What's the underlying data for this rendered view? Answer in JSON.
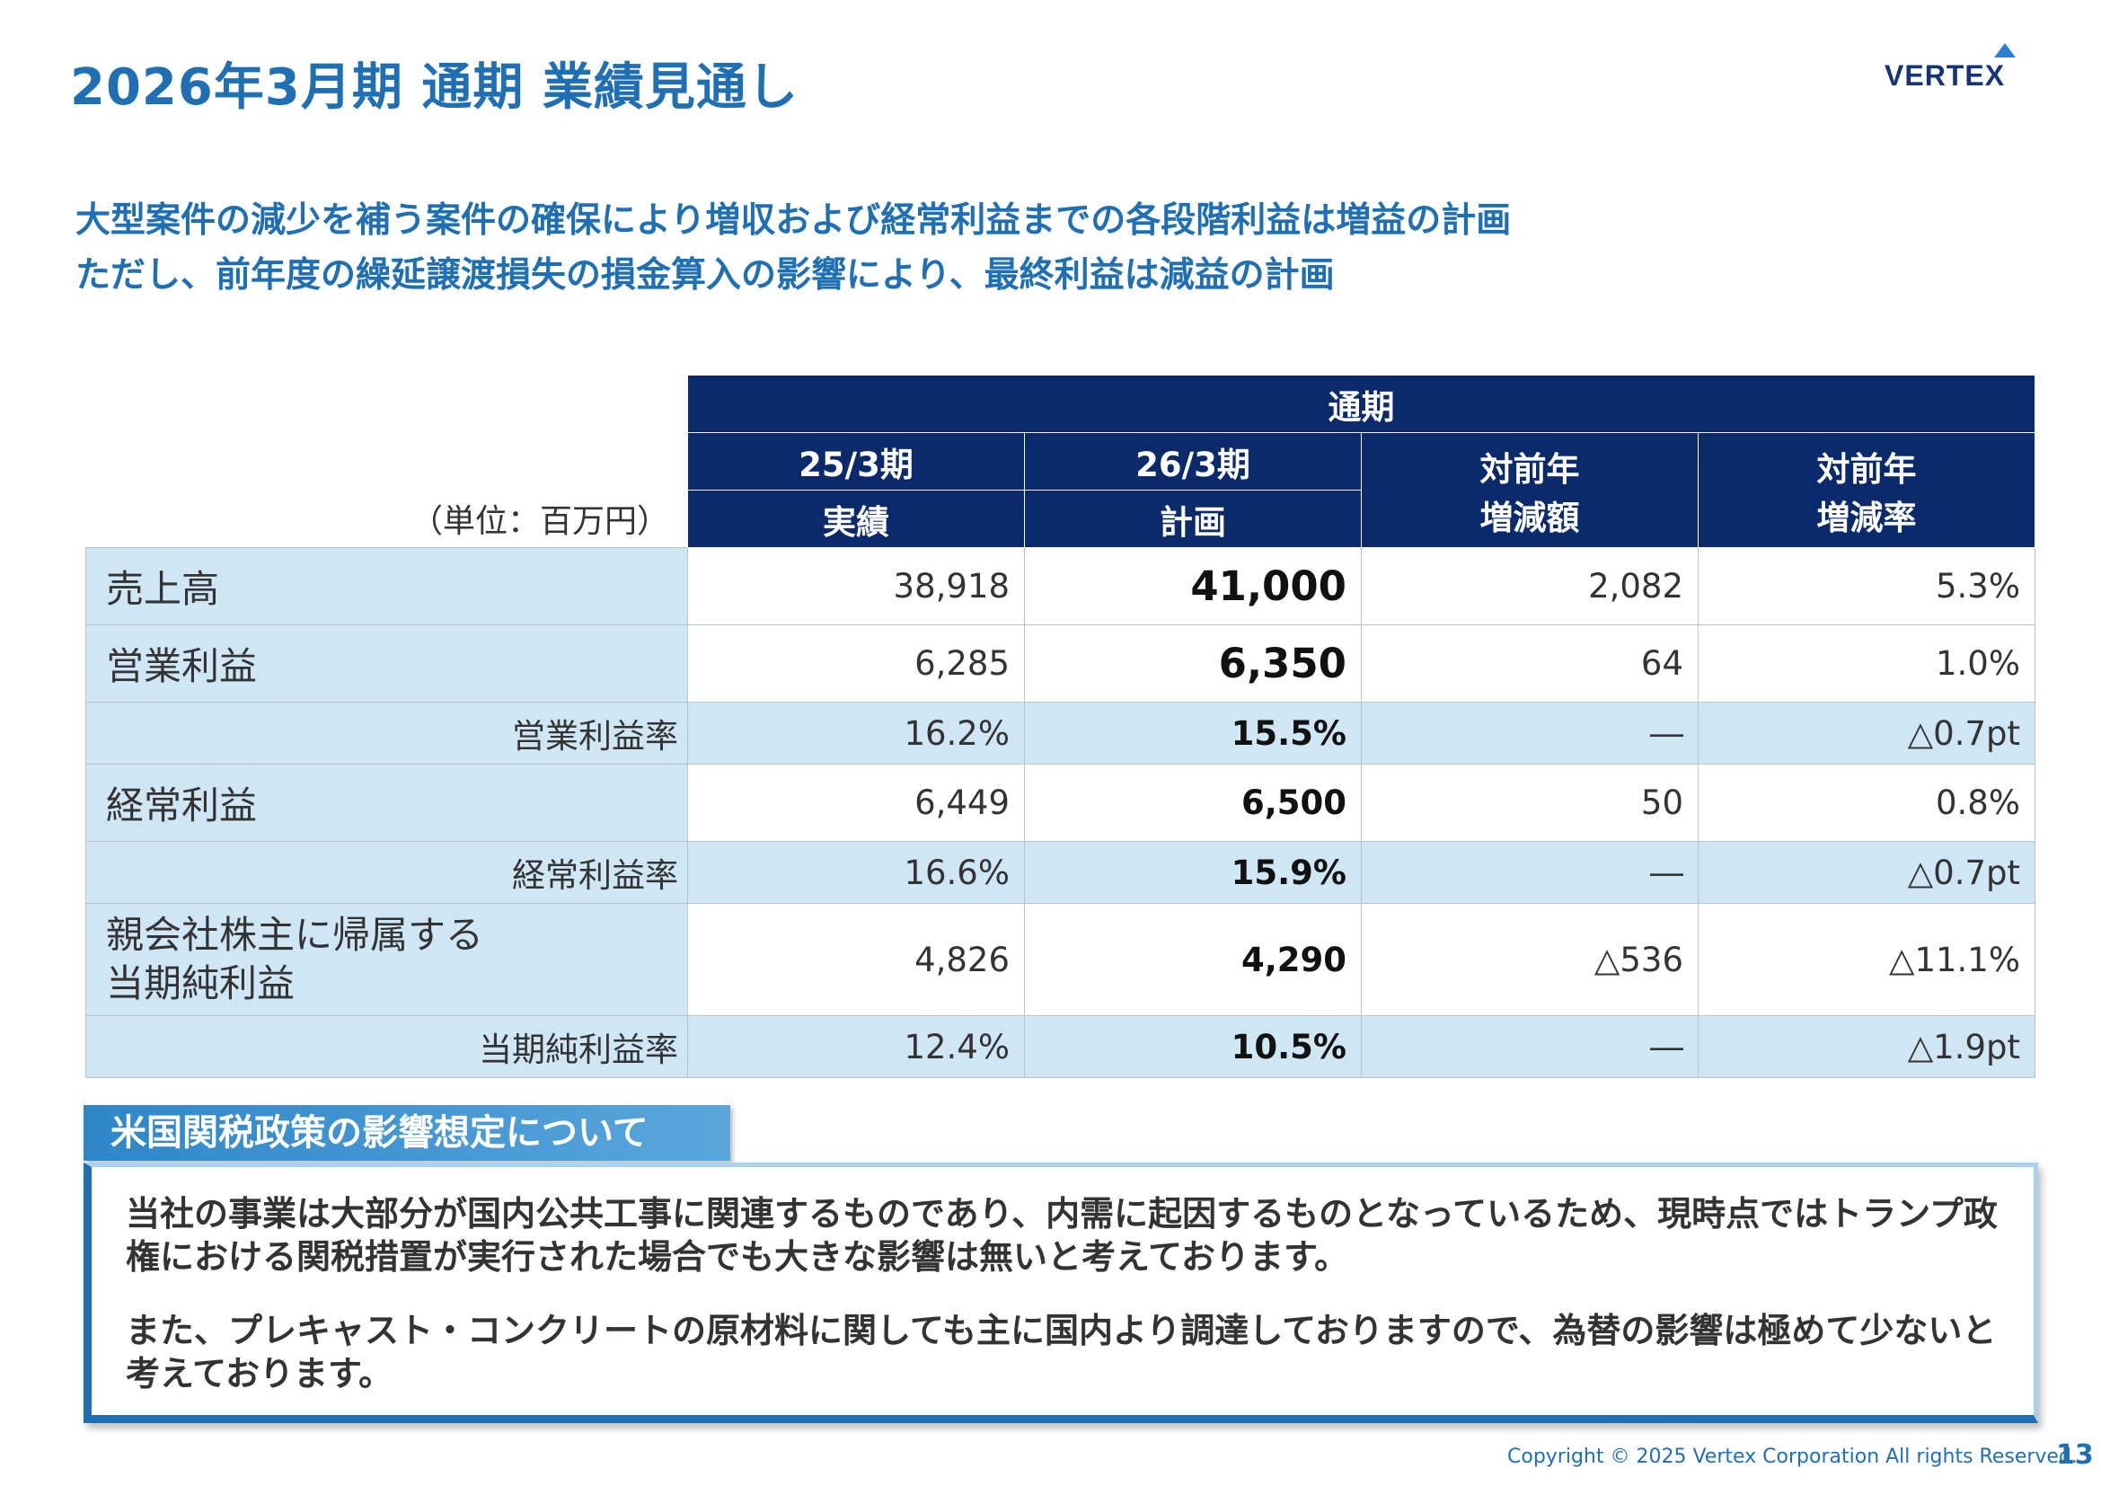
{
  "title": "2026年3月期 通期 業績見通し",
  "logo": {
    "text": "VERTEX"
  },
  "subtitle": {
    "line1": "大型案件の減少を補う案件の確保により増収および経常利益までの各段階利益は増益の計画",
    "line2": "ただし、前年度の繰延譲渡損失の損金算入の影響により、最終利益は減益の計画"
  },
  "table": {
    "unit": "（単位：百万円）",
    "header_group": "通期",
    "col1_top": "25/3期",
    "col1_bottom": "実績",
    "col2_top": "26/3期",
    "col2_bottom": "計画",
    "col3_line1": "対前年",
    "col3_line2": "増減額",
    "col4_line1": "対前年",
    "col4_line2": "増減率",
    "rows": [
      {
        "label": "売上高",
        "actual": "38,918",
        "plan": "41,000",
        "diff": "2,082",
        "rate": "5.3%"
      },
      {
        "label": "営業利益",
        "actual": "6,285",
        "plan": "6,350",
        "diff": "64",
        "rate": "1.0%"
      },
      {
        "label": "営業利益率",
        "actual": "16.2%",
        "plan": "15.5%",
        "diff": "―",
        "rate": "△0.7pt"
      },
      {
        "label": "経常利益",
        "actual": "6,449",
        "plan": "6,500",
        "diff": "50",
        "rate": "0.8%"
      },
      {
        "label": "経常利益率",
        "actual": "16.6%",
        "plan": "15.9%",
        "diff": "―",
        "rate": "△0.7pt"
      },
      {
        "label_line1": "親会社株主に帰属する",
        "label_line2": "当期純利益",
        "actual": "4,826",
        "plan": "4,290",
        "diff": "△536",
        "rate": "△11.1%"
      },
      {
        "label": "当期純利益率",
        "actual": "12.4%",
        "plan": "10.5%",
        "diff": "―",
        "rate": "△1.9pt"
      }
    ]
  },
  "tariff": {
    "heading": "米国関税政策の影響想定について",
    "para1": "当社の事業は大部分が国内公共工事に関連するものであり、内需に起因するものとなっているため、現時点ではトランプ政権における関税措置が実行された場合でも大きな影響は無いと考えております。",
    "para2": "また、プレキャスト・コンクリートの原材料に関しても主に国内より調達しておりますので、為替の影響は極めて少ないと考えております。"
  },
  "footer": {
    "copyright": "Copyright © 2025 Vertex Corporation All rights Reserved.",
    "page": "13"
  }
}
